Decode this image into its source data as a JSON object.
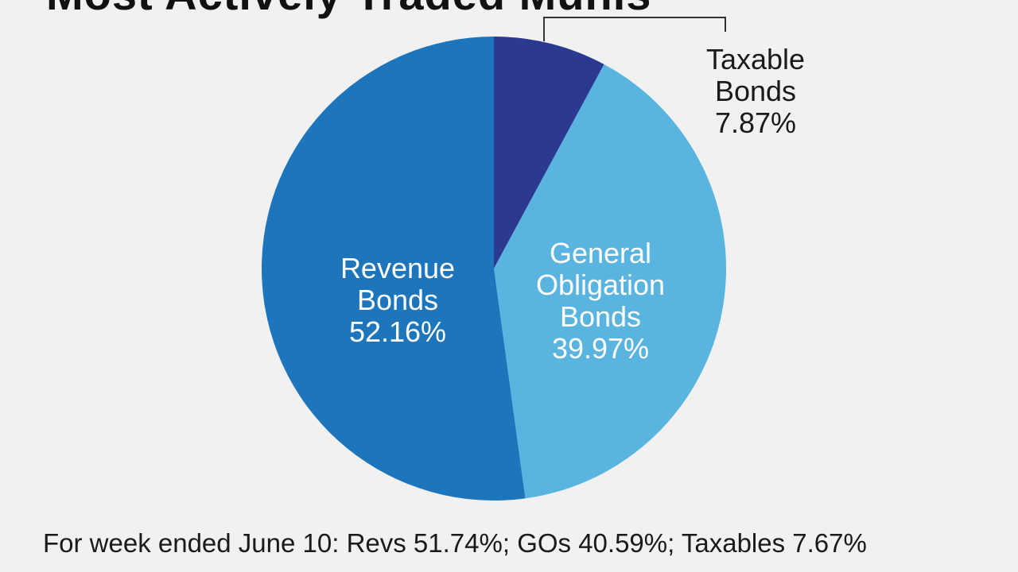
{
  "chart_data": {
    "type": "pie",
    "title": "Most Actively Traded Munis",
    "slices": [
      {
        "label_lines": [
          "Taxable",
          "Bonds",
          "7.87%"
        ],
        "value": 7.87,
        "color": "#2b3990",
        "text_color": "#1a1a1a"
      },
      {
        "label_lines": [
          "General",
          "Obligation",
          "Bonds",
          "39.97%"
        ],
        "value": 39.97,
        "color": "#5ab4e0",
        "text_color": "#ffffff"
      },
      {
        "label_lines": [
          "Revenue",
          "Bonds",
          "52.16%"
        ],
        "value": 52.16,
        "color": "#1d75bc",
        "text_color": "#ffffff"
      }
    ],
    "start_angle_deg": 0,
    "direction": "clockwise",
    "footnote": "For week ended June 10: Revs 51.74%; GOs 40.59%; Taxables 7.67%"
  }
}
